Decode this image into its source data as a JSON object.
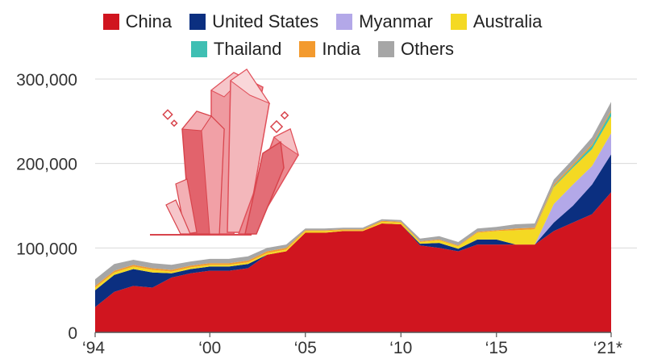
{
  "chart_data": {
    "type": "area",
    "stacked": true,
    "title": "",
    "xlabel": "",
    "ylabel": "",
    "ylim": [
      0,
      300000
    ],
    "yticks": [
      {
        "value": 0,
        "label": "0"
      },
      {
        "value": 100000,
        "label": "100,000"
      },
      {
        "value": 200000,
        "label": "200,000"
      },
      {
        "value": 300000,
        "label": "300,000"
      }
    ],
    "xticks": [
      {
        "value": 1994,
        "label": "‘94"
      },
      {
        "value": 2000,
        "label": "‘00"
      },
      {
        "value": 2005,
        "label": "‘05"
      },
      {
        "value": 2010,
        "label": "‘10"
      },
      {
        "value": 2015,
        "label": "‘15"
      },
      {
        "value": 2021,
        "label": "‘21*"
      }
    ],
    "grid": true,
    "legend_position": "top",
    "x": [
      1994,
      1995,
      1996,
      1997,
      1998,
      1999,
      2000,
      2001,
      2002,
      2003,
      2004,
      2005,
      2006,
      2007,
      2008,
      2009,
      2010,
      2011,
      2012,
      2013,
      2014,
      2015,
      2016,
      2017,
      2018,
      2019,
      2020,
      2021
    ],
    "series": [
      {
        "name": "China",
        "color": "#d0151f",
        "values": [
          30000,
          48000,
          55000,
          53000,
          65000,
          70000,
          73000,
          73000,
          76000,
          92000,
          96000,
          118000,
          118000,
          120000,
          120000,
          129000,
          128000,
          103000,
          100000,
          96000,
          104000,
          104000,
          104000,
          104000,
          120000,
          130000,
          140000,
          166000
        ]
      },
      {
        "name": "United States",
        "color": "#0b2f80",
        "values": [
          20000,
          20000,
          20000,
          18000,
          5000,
          5000,
          5000,
          5000,
          5000,
          0,
          0,
          0,
          0,
          0,
          0,
          0,
          0,
          2000,
          6000,
          3000,
          6000,
          6000,
          0,
          0,
          10000,
          20000,
          35000,
          45000
        ]
      },
      {
        "name": "Myanmar",
        "color": "#b3a8e8",
        "values": [
          0,
          0,
          0,
          0,
          0,
          0,
          0,
          0,
          0,
          0,
          0,
          0,
          0,
          0,
          0,
          0,
          0,
          0,
          0,
          0,
          0,
          0,
          0,
          0,
          22000,
          25000,
          22000,
          25000
        ]
      },
      {
        "name": "Australia",
        "color": "#f4d923",
        "values": [
          3000,
          3000,
          3000,
          3000,
          2000,
          2000,
          2000,
          2000,
          2000,
          2000,
          2000,
          2000,
          2000,
          1000,
          1000,
          2000,
          2000,
          2000,
          3000,
          3000,
          8000,
          10000,
          17000,
          18000,
          20000,
          20000,
          20000,
          20000
        ]
      },
      {
        "name": "Thailand",
        "color": "#3fbfb3",
        "values": [
          0,
          0,
          0,
          0,
          0,
          0,
          0,
          0,
          0,
          0,
          0,
          0,
          0,
          0,
          0,
          0,
          0,
          0,
          0,
          0,
          0,
          0,
          0,
          0,
          1000,
          2000,
          4000,
          5000
        ]
      },
      {
        "name": "India",
        "color": "#f39a2e",
        "values": [
          2000,
          2000,
          2000,
          2000,
          2000,
          2000,
          2000,
          2000,
          2000,
          2000,
          2000,
          1000,
          1000,
          1000,
          1000,
          1000,
          1000,
          1000,
          1000,
          1000,
          1000,
          1000,
          2000,
          2000,
          2000,
          2000,
          2000,
          2000
        ]
      },
      {
        "name": "Others",
        "color": "#a6a6a6",
        "values": [
          8000,
          8000,
          6000,
          6000,
          6000,
          5000,
          5000,
          5000,
          5000,
          4000,
          4000,
          2000,
          2000,
          2000,
          2000,
          2000,
          2000,
          3000,
          4000,
          4000,
          4000,
          4000,
          5000,
          5000,
          6000,
          6000,
          8000,
          10000
        ]
      }
    ]
  }
}
